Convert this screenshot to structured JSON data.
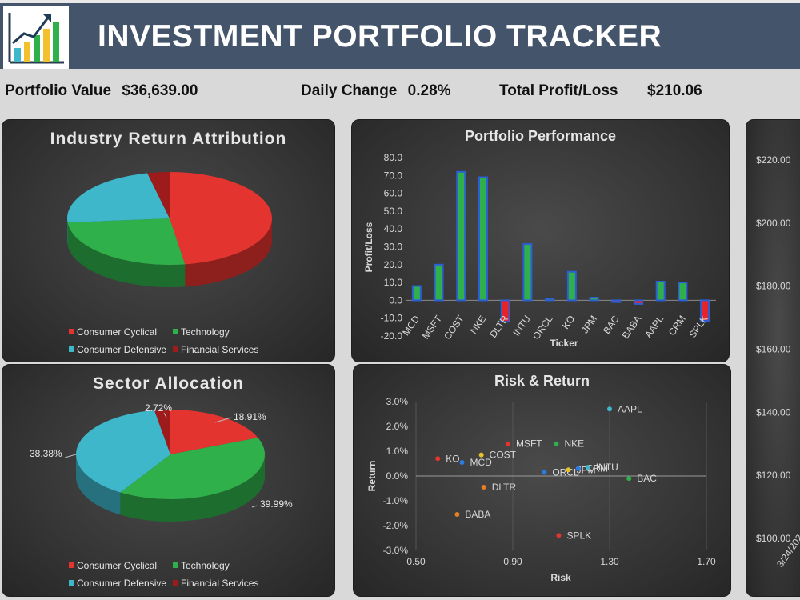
{
  "header": {
    "title": "INVESTMENT PORTFOLIO TRACKER",
    "logo_icon": "growth-chart-icon"
  },
  "stats": {
    "portfolio_value_label": "Portfolio Value",
    "portfolio_value": "$36,639.00",
    "daily_change_label": "Daily Change",
    "daily_change": "0.28%",
    "total_pl_label": "Total Profit/Loss",
    "total_pl": "$210.06"
  },
  "colors": {
    "consumer_cyclical": "#e3342f",
    "technology": "#2fb04a",
    "consumer_defensive": "#3db7c9",
    "financial_services": "#9e1b1b",
    "bar_positive": "#2fb04a",
    "bar_negative": "#e3242b",
    "bar_outline": "#2c5fd6"
  },
  "chart_data": [
    {
      "type": "pie",
      "title": "Industry Return Attribution",
      "categories": [
        "Consumer Cyclical",
        "Technology",
        "Consumer Defensive",
        "Financial Services"
      ],
      "values": [
        47.6,
        26.0,
        22.9,
        3.5
      ],
      "legend": [
        "Consumer Cyclical",
        "Technology",
        "Consumer Defensive",
        "Financial Services"
      ],
      "legend_position": "bottom"
    },
    {
      "type": "pie",
      "title": "Sector Allocation",
      "categories": [
        "Consumer Cyclical",
        "Technology",
        "Consumer Defensive",
        "Financial Services"
      ],
      "values": [
        18.91,
        39.99,
        38.38,
        2.72
      ],
      "data_labels": [
        "18.91%",
        "39.99%",
        "38.38%",
        "2.72%"
      ],
      "legend": [
        "Consumer Cyclical",
        "Technology",
        "Consumer Defensive",
        "Financial Services"
      ],
      "legend_position": "bottom"
    },
    {
      "type": "bar",
      "title": "Portfolio Performance",
      "xlabel": "Ticker",
      "ylabel": "Profit/Loss",
      "categories": [
        "MCD",
        "MSFT",
        "COST",
        "NKE",
        "DLTR",
        "INTU",
        "ORCL",
        "KO",
        "JPM",
        "BAC",
        "BABA",
        "AAPL",
        "CRM",
        "SPLK"
      ],
      "values": [
        8.0,
        20.0,
        72.0,
        69.0,
        -12.0,
        31.5,
        1.0,
        16.0,
        1.5,
        -1.0,
        -2.0,
        10.5,
        10.0,
        -11.5
      ],
      "ylim": [
        -20,
        80
      ],
      "yticks": [
        "80.0",
        "70.0",
        "60.0",
        "50.0",
        "40.0",
        "30.0",
        "20.0",
        "10.0",
        "0.0",
        "-10.0",
        "-20.0"
      ]
    },
    {
      "type": "scatter",
      "title": "Risk & Return",
      "xlabel": "Risk",
      "ylabel": "Return",
      "xlim": [
        0.5,
        1.7
      ],
      "ylim": [
        -3.0,
        3.0
      ],
      "xticks": [
        "0.50",
        "0.90",
        "1.30",
        "1.70"
      ],
      "yticks": [
        "3.0%",
        "2.0%",
        "1.0%",
        "0.0%",
        "-1.0%",
        "-2.0%",
        "-3.0%"
      ],
      "points": [
        {
          "label": "AAPL",
          "x": 1.3,
          "y": 2.7,
          "color": "#3db7c9"
        },
        {
          "label": "MSFT",
          "x": 0.88,
          "y": 1.3,
          "color": "#e3342f"
        },
        {
          "label": "NKE",
          "x": 1.08,
          "y": 1.3,
          "color": "#2fb04a"
        },
        {
          "label": "COST",
          "x": 0.77,
          "y": 0.85,
          "color": "#e6c229"
        },
        {
          "label": "KO",
          "x": 0.59,
          "y": 0.7,
          "color": "#e3342f"
        },
        {
          "label": "MCD",
          "x": 0.69,
          "y": 0.55,
          "color": "#2c7be5"
        },
        {
          "label": "ORCL",
          "x": 1.03,
          "y": 0.15,
          "color": "#2c7be5"
        },
        {
          "label": "JPM",
          "x": 1.13,
          "y": 0.25,
          "color": "#e6c229"
        },
        {
          "label": "CRM",
          "x": 1.17,
          "y": 0.3,
          "color": "#2c7be5"
        },
        {
          "label": "INTU",
          "x": 1.21,
          "y": 0.35,
          "color": "#3db7c9"
        },
        {
          "label": "BAC",
          "x": 1.38,
          "y": -0.1,
          "color": "#2fb04a"
        },
        {
          "label": "DLTR",
          "x": 0.78,
          "y": -0.45,
          "color": "#e67e22"
        },
        {
          "label": "BABA",
          "x": 0.67,
          "y": -1.55,
          "color": "#e67e22"
        },
        {
          "label": "SPLK",
          "x": 1.09,
          "y": -2.4,
          "color": "#e3342f"
        }
      ]
    },
    {
      "type": "line",
      "yticks": [
        "$220.00",
        "$200.00",
        "$180.00",
        "$160.00",
        "$140.00",
        "$120.00",
        "$100.00"
      ],
      "ylim": [
        100,
        220
      ],
      "x_tick_partial": "3/24/202"
    }
  ]
}
